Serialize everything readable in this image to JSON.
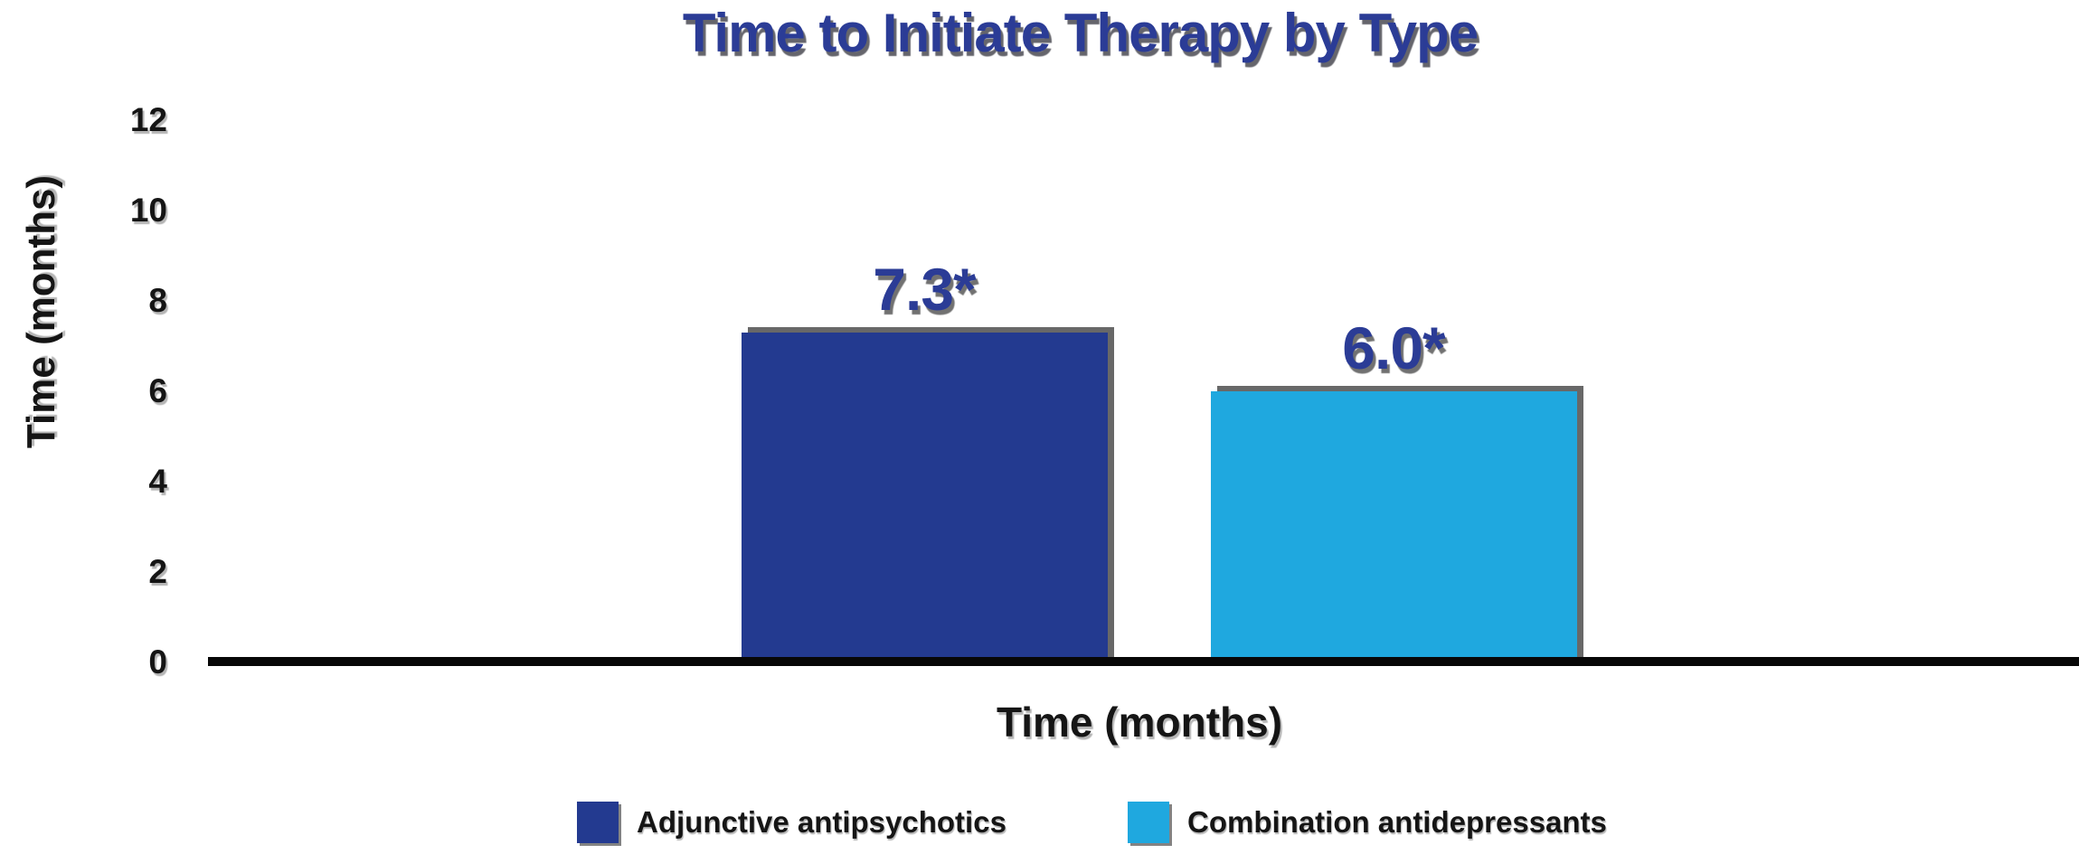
{
  "chart_data": {
    "type": "bar",
    "title": "Time to Initiate Therapy by Type",
    "xlabel": "Time (months)",
    "ylabel": "Time (months)",
    "ylim": [
      0,
      12
    ],
    "ytick_step": 2,
    "yticks": [
      "0",
      "2",
      "4",
      "6",
      "8",
      "10",
      "12"
    ],
    "grid": false,
    "legend_position": "bottom",
    "categories": [
      "Adjunctive antipsychotics",
      "Combination antidepressants"
    ],
    "values": [
      7.3,
      6.0
    ],
    "value_labels": [
      "7.3*",
      "6.0*"
    ],
    "series_colors": [
      "#233a90",
      "#1fa8df"
    ]
  },
  "legend": {
    "items": [
      {
        "label": "Adjunctive antipsychotics",
        "color": "#233a90"
      },
      {
        "label": "Combination antidepressants",
        "color": "#1fa8df"
      }
    ]
  },
  "colors": {
    "background": "#ffffff",
    "title_text": "#2b3c96",
    "value_text": "#2b3c96",
    "axis_text": "#151515",
    "axis_line": "#070707"
  }
}
